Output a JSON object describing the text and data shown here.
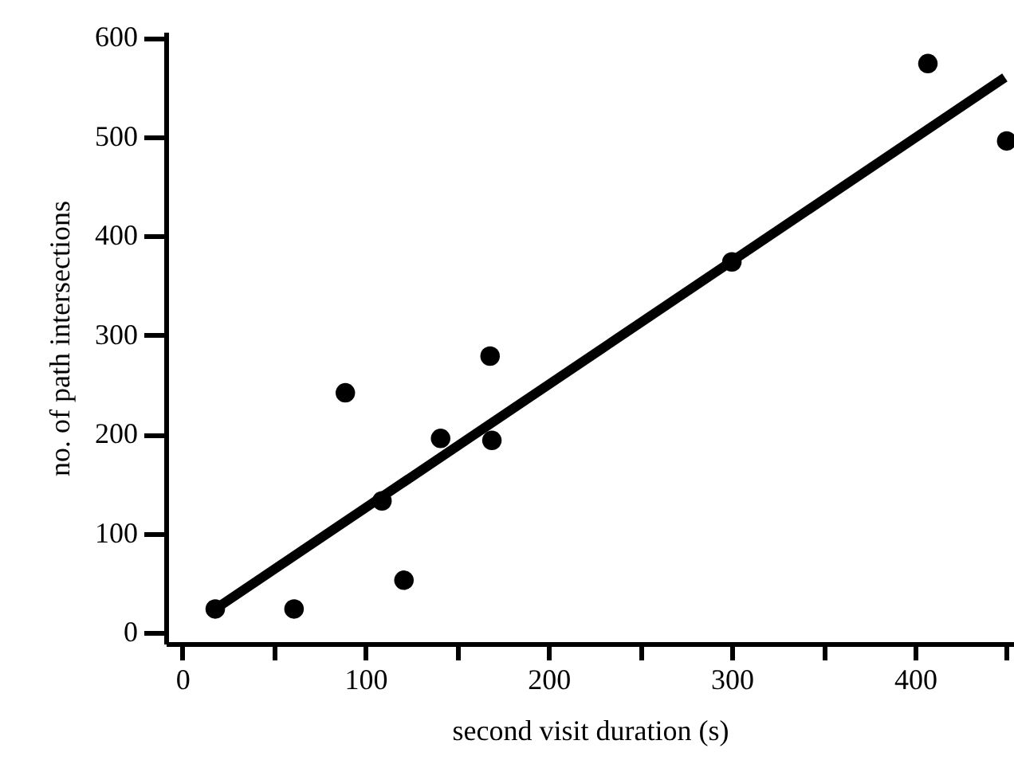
{
  "chart_data": {
    "type": "scatter",
    "xlabel": "second visit duration (s)",
    "ylabel": "no. of path intersections",
    "xlim": [
      -9,
      454
    ],
    "ylim": [
      -11,
      606
    ],
    "xticks": [
      0,
      {
        "value": 50,
        "label": null
      },
      100,
      {
        "value": 150,
        "label": null
      },
      200,
      {
        "value": 250,
        "label": null
      },
      300,
      {
        "value": 350,
        "label": null
      },
      400,
      {
        "value": 450,
        "label": null
      }
    ],
    "yticks": [
      0,
      100,
      200,
      300,
      400,
      500,
      600
    ],
    "grid": false,
    "series": [
      {
        "color": "#000000",
        "marker": "circle",
        "x": [
          18,
          61,
          89,
          109,
          121,
          141,
          168,
          169,
          300,
          407,
          450
        ],
        "values": [
          24,
          24,
          242,
          133,
          53,
          196,
          279,
          194,
          374,
          574,
          496
        ]
      },
      {
        "type": "line",
        "color": "#000000",
        "line_style": "solid",
        "x": [
          18,
          449
        ],
        "values": [
          24,
          560
        ]
      }
    ]
  }
}
